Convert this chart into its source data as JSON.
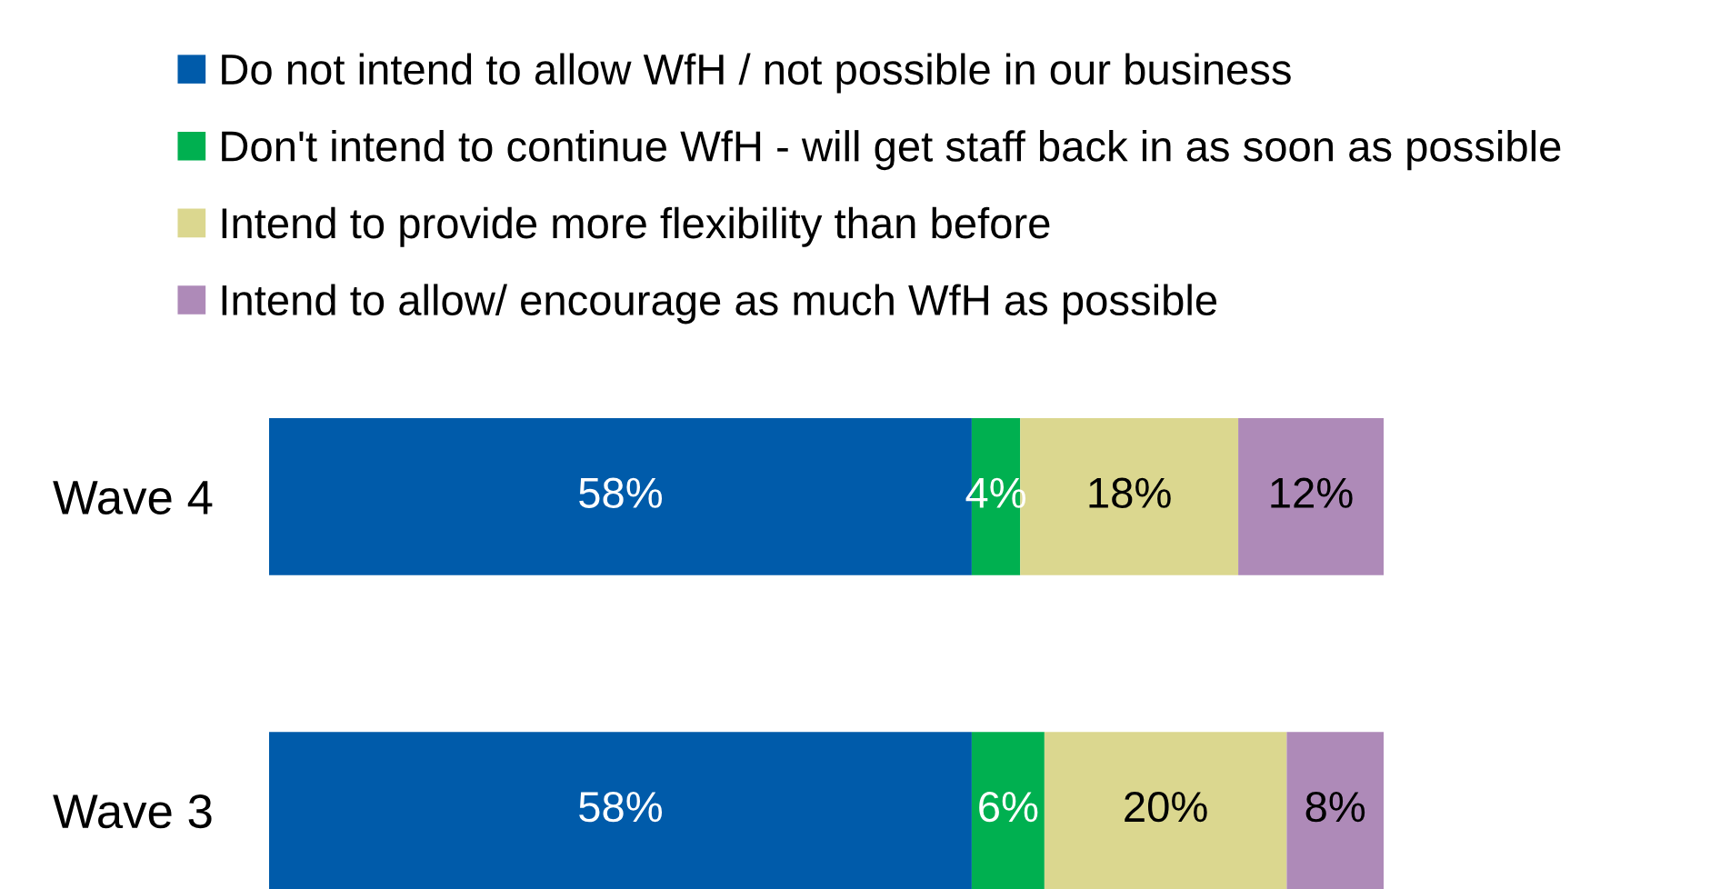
{
  "chart_data": {
    "type": "bar",
    "orientation": "horizontal",
    "stacked": true,
    "legend": "top",
    "categories": [
      "Wave 4",
      "Wave 3"
    ],
    "series": [
      {
        "name": "Do not intend to allow WfH / not possible in our business",
        "color": "#005baa",
        "values": [
          58,
          58
        ],
        "value_labels": [
          "58%",
          "58%"
        ]
      },
      {
        "name": "Don't intend to continue WfH - will get staff back in as soon as possible",
        "color": "#00b050",
        "values": [
          4,
          6
        ],
        "value_labels": [
          "4%",
          "6%"
        ]
      },
      {
        "name": "Intend to provide more flexibility than before",
        "color": "#dbd78f",
        "values": [
          18,
          20
        ],
        "value_labels": [
          "18%",
          "20%"
        ]
      },
      {
        "name": "Intend to allow/ encourage as much WfH as possible",
        "color": "#ae8ab8",
        "values": [
          12,
          8
        ],
        "value_labels": [
          "12%",
          "8%"
        ]
      }
    ]
  }
}
